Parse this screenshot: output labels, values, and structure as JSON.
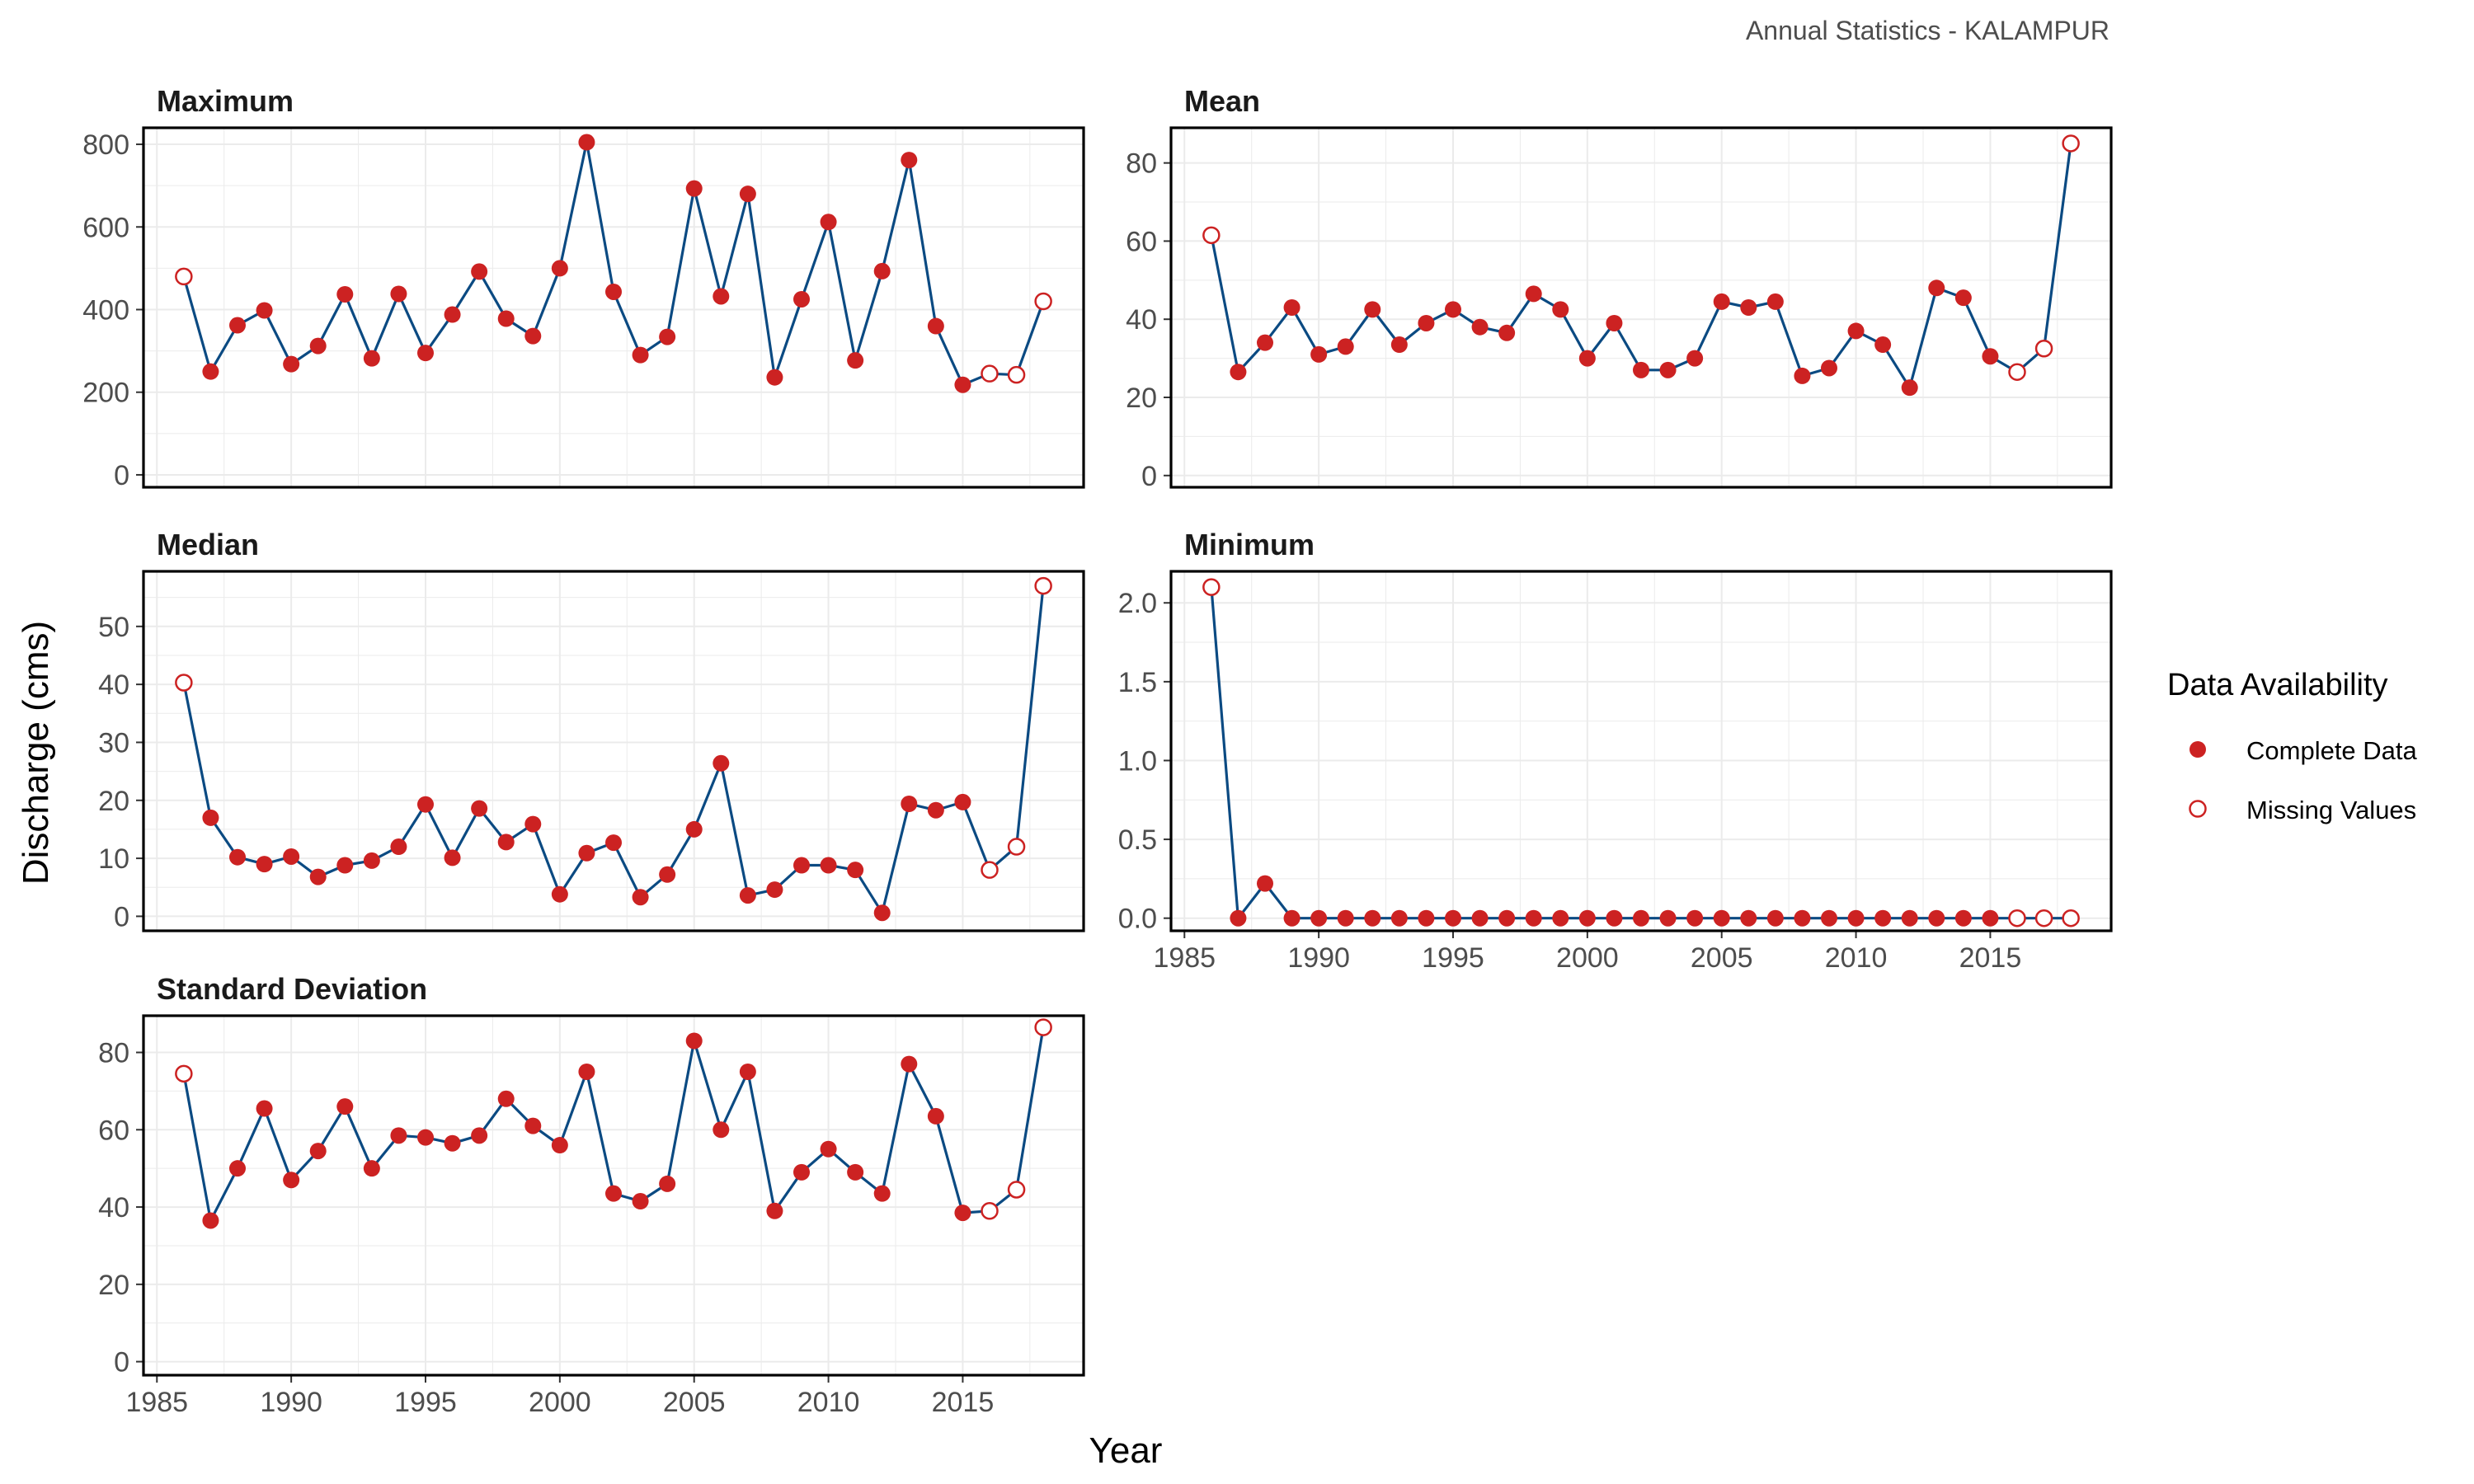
{
  "caption": "Annual Statistics - KALAMPUR",
  "chart_data": {
    "type": "line",
    "xlabel": "Year",
    "ylabel": "Discharge (cms)",
    "x": [
      1986,
      1987,
      1988,
      1989,
      1990,
      1991,
      1992,
      1993,
      1994,
      1995,
      1996,
      1997,
      1998,
      1999,
      2000,
      2001,
      2002,
      2003,
      2004,
      2005,
      2006,
      2007,
      2008,
      2009,
      2010,
      2011,
      2012,
      2013,
      2014,
      2015,
      2016,
      2017,
      2018
    ],
    "xlim": [
      1984.5,
      2019.5
    ],
    "xticks": [
      1985,
      1990,
      1995,
      2000,
      2005,
      2010,
      2015
    ],
    "missing_years": [
      1986,
      2016,
      2017,
      2018
    ],
    "colors": {
      "line": "#0b4a82",
      "point": "#cc2222",
      "grid": "#ebebeb",
      "panel_border": "#000000"
    },
    "legend": {
      "title": "Data Availability",
      "placement": "right",
      "items": [
        {
          "label": "Complete Data",
          "marker": "filled-circle"
        },
        {
          "label": "Missing Values",
          "marker": "open-circle"
        }
      ]
    },
    "panels": [
      {
        "title": "Maximum",
        "ylim": [
          -30,
          840
        ],
        "yticks": [
          0,
          200,
          400,
          600,
          800
        ],
        "values": [
          480,
          250,
          362,
          398,
          268,
          312,
          437,
          282,
          438,
          295,
          388,
          492,
          378,
          336,
          500,
          805,
          443,
          290,
          334,
          693,
          432,
          680,
          236,
          425,
          612,
          277,
          493,
          762,
          360,
          218,
          245,
          242,
          420
        ]
      },
      {
        "title": "Mean",
        "ylim": [
          -3,
          89
        ],
        "yticks": [
          0,
          20,
          40,
          60,
          80
        ],
        "values": [
          61.5,
          26.5,
          34,
          43,
          31,
          33,
          42.5,
          33.5,
          39,
          42.5,
          38,
          36.5,
          46.5,
          42.5,
          30,
          39,
          27,
          27,
          30,
          44.5,
          43,
          44.5,
          25.5,
          27.5,
          37,
          33.5,
          22.5,
          48,
          45.5,
          30.5,
          26.5,
          32.5,
          85
        ]
      },
      {
        "title": "Median",
        "ylim": [
          -2.5,
          59.5
        ],
        "yticks": [
          0,
          10,
          20,
          30,
          40,
          50
        ],
        "values": [
          40.3,
          17,
          10.2,
          9,
          10.3,
          6.8,
          8.8,
          9.6,
          12,
          19.3,
          10.1,
          18.6,
          12.8,
          15.9,
          3.8,
          10.9,
          12.7,
          3.3,
          7.2,
          15,
          26.4,
          3.6,
          4.6,
          8.8,
          8.8,
          8,
          0.6,
          19.4,
          18.3,
          19.7,
          8,
          12,
          57
        ]
      },
      {
        "title": "Minimum",
        "ylim": [
          -0.08,
          2.2
        ],
        "yticks": [
          0.0,
          0.5,
          1.0,
          1.5,
          2.0
        ],
        "decimals": 1,
        "values": [
          2.1,
          0,
          0.22,
          0,
          0,
          0,
          0,
          0,
          0,
          0,
          0,
          0,
          0,
          0,
          0,
          0,
          0,
          0,
          0,
          0,
          0,
          0,
          0,
          0,
          0,
          0,
          0,
          0,
          0,
          0,
          0,
          0,
          0
        ]
      },
      {
        "title": "Standard Deviation",
        "ylim": [
          -3.5,
          89.5
        ],
        "yticks": [
          0,
          20,
          40,
          60,
          80
        ],
        "values": [
          74.5,
          36.5,
          50,
          65.5,
          47,
          54.5,
          66,
          50,
          58.5,
          58,
          56.5,
          58.5,
          68,
          61,
          56,
          75,
          43.5,
          41.5,
          46,
          83,
          60,
          75,
          39,
          49,
          55,
          49,
          43.5,
          77,
          63.5,
          38.5,
          39,
          44.5,
          86.5
        ]
      }
    ]
  }
}
